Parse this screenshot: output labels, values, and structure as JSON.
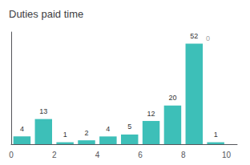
{
  "chart_data": {
    "type": "bar",
    "title": "Duties paid time",
    "x": [
      0.5,
      1.5,
      2.5,
      3.5,
      4.5,
      5.5,
      6.5,
      7.5,
      8.5,
      9.5
    ],
    "values": [
      4,
      13,
      1,
      2,
      4,
      5,
      12,
      20,
      52,
      1
    ],
    "color": "#3DBFB8",
    "xlim": [
      0,
      10.5
    ],
    "xticks": [
      0,
      2,
      4,
      6,
      8,
      10
    ],
    "ylim": [
      0,
      58
    ],
    "grid": false,
    "data_labels": true,
    "tick_labels": "x",
    "annotations": [
      {
        "text": "0",
        "x": 8.6,
        "y": 54.5
      }
    ]
  }
}
